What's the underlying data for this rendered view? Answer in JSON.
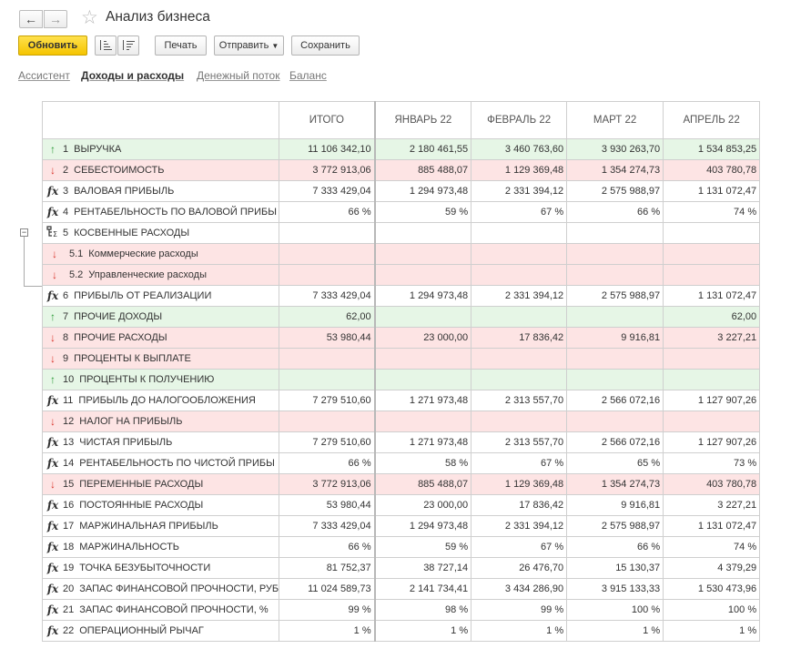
{
  "header": {
    "title": "Анализ бизнеса",
    "back_icon": "←",
    "forward_icon": "→",
    "favorite_icon": "☆"
  },
  "toolbar": {
    "refresh_label": "Обновить",
    "print_label": "Печать",
    "send_label": "Отправить",
    "save_label": "Сохранить",
    "dropdown_caret": "▼"
  },
  "tabs": [
    {
      "label": "Ассистент",
      "active": false
    },
    {
      "label": "Доходы и расходы",
      "active": true
    },
    {
      "label": "Денежный поток",
      "active": false
    },
    {
      "label": "Баланс",
      "active": false
    }
  ],
  "table": {
    "columns": [
      "ИТОГО",
      "ЯНВАРЬ 22",
      "ФЕВРАЛЬ 22",
      "МАРТ 22",
      "АПРЕЛЬ 22"
    ],
    "rows": [
      {
        "num": "1",
        "label": "ВЫРУЧКА",
        "icon": "arrow-up",
        "tint": "green",
        "values": [
          "11 106 342,10",
          "2 180 461,55",
          "3 460 763,60",
          "3 930 263,70",
          "1 534 853,25"
        ]
      },
      {
        "num": "2",
        "label": "СЕБЕСТОИМОСТЬ",
        "icon": "arrow-down",
        "tint": "red",
        "values": [
          "3 772 913,06",
          "885 488,07",
          "1 129 369,48",
          "1 354 274,73",
          "403 780,78"
        ]
      },
      {
        "num": "3",
        "label": "ВАЛОВАЯ ПРИБЫЛЬ",
        "icon": "fx",
        "tint": "none",
        "values": [
          "7 333 429,04",
          "1 294 973,48",
          "2 331 394,12",
          "2 575 988,97",
          "1 131 072,47"
        ]
      },
      {
        "num": "4",
        "label": "РЕНТАБЕЛЬНОСТЬ ПО ВАЛОВОЙ ПРИБЫ",
        "icon": "fx",
        "tint": "none",
        "values": [
          "66 %",
          "59 %",
          "67 %",
          "66 %",
          "74 %"
        ]
      },
      {
        "num": "5",
        "label": "КОСВЕННЫЕ РАСХОДЫ",
        "icon": "group",
        "tint": "none",
        "values": [
          "",
          "",
          "",
          "",
          ""
        ]
      },
      {
        "num": "5.1",
        "label": "Коммерческие расходы",
        "icon": "arrow-down",
        "tint": "red",
        "sub": true,
        "values": [
          "",
          "",
          "",
          "",
          ""
        ]
      },
      {
        "num": "5.2",
        "label": "Управленческие расходы",
        "icon": "arrow-down",
        "tint": "red",
        "sub": true,
        "values": [
          "",
          "",
          "",
          "",
          ""
        ]
      },
      {
        "num": "6",
        "label": "ПРИБЫЛЬ ОТ РЕАЛИЗАЦИИ",
        "icon": "fx",
        "tint": "none",
        "values": [
          "7 333 429,04",
          "1 294 973,48",
          "2 331 394,12",
          "2 575 988,97",
          "1 131 072,47"
        ]
      },
      {
        "num": "7",
        "label": "ПРОЧИЕ ДОХОДЫ",
        "icon": "arrow-up",
        "tint": "green",
        "values": [
          "62,00",
          "",
          "",
          "",
          "62,00"
        ]
      },
      {
        "num": "8",
        "label": "ПРОЧИЕ РАСХОДЫ",
        "icon": "arrow-down",
        "tint": "red",
        "values": [
          "53 980,44",
          "23 000,00",
          "17 836,42",
          "9 916,81",
          "3 227,21"
        ]
      },
      {
        "num": "9",
        "label": "ПРОЦЕНТЫ К ВЫПЛАТЕ",
        "icon": "arrow-down",
        "tint": "red",
        "values": [
          "",
          "",
          "",
          "",
          ""
        ]
      },
      {
        "num": "10",
        "label": "ПРОЦЕНТЫ К ПОЛУЧЕНИЮ",
        "icon": "arrow-up",
        "tint": "green",
        "values": [
          "",
          "",
          "",
          "",
          ""
        ]
      },
      {
        "num": "11",
        "label": "ПРИБЫЛЬ ДО НАЛОГООБЛОЖЕНИЯ",
        "icon": "fx",
        "tint": "none",
        "values": [
          "7 279 510,60",
          "1 271 973,48",
          "2 313 557,70",
          "2 566 072,16",
          "1 127 907,26"
        ]
      },
      {
        "num": "12",
        "label": "НАЛОГ НА ПРИБЫЛЬ",
        "icon": "arrow-down",
        "tint": "red",
        "values": [
          "",
          "",
          "",
          "",
          ""
        ]
      },
      {
        "num": "13",
        "label": "ЧИСТАЯ ПРИБЫЛЬ",
        "icon": "fx",
        "tint": "none",
        "values": [
          "7 279 510,60",
          "1 271 973,48",
          "2 313 557,70",
          "2 566 072,16",
          "1 127 907,26"
        ]
      },
      {
        "num": "14",
        "label": "РЕНТАБЕЛЬНОСТЬ ПО ЧИСТОЙ ПРИБЫ",
        "icon": "fx",
        "tint": "none",
        "values": [
          "66 %",
          "58 %",
          "67 %",
          "65 %",
          "73 %"
        ]
      },
      {
        "num": "15",
        "label": "ПЕРЕМЕННЫЕ РАСХОДЫ",
        "icon": "arrow-down",
        "tint": "red",
        "values": [
          "3 772 913,06",
          "885 488,07",
          "1 129 369,48",
          "1 354 274,73",
          "403 780,78"
        ]
      },
      {
        "num": "16",
        "label": "ПОСТОЯННЫЕ РАСХОДЫ",
        "icon": "fx",
        "tint": "none",
        "values": [
          "53 980,44",
          "23 000,00",
          "17 836,42",
          "9 916,81",
          "3 227,21"
        ]
      },
      {
        "num": "17",
        "label": "МАРЖИНАЛЬНАЯ ПРИБЫЛЬ",
        "icon": "fx",
        "tint": "none",
        "values": [
          "7 333 429,04",
          "1 294 973,48",
          "2 331 394,12",
          "2 575 988,97",
          "1 131 072,47"
        ]
      },
      {
        "num": "18",
        "label": "МАРЖИНАЛЬНОСТЬ",
        "icon": "fx",
        "tint": "none",
        "values": [
          "66 %",
          "59 %",
          "67 %",
          "66 %",
          "74 %"
        ]
      },
      {
        "num": "19",
        "label": "ТОЧКА БЕЗУБЫТОЧНОСТИ",
        "icon": "fx",
        "tint": "none",
        "values": [
          "81 752,37",
          "38 727,14",
          "26 476,70",
          "15 130,37",
          "4 379,29"
        ]
      },
      {
        "num": "20",
        "label": "ЗАПАС ФИНАНСОВОЙ ПРОЧНОСТИ, РУБ",
        "icon": "fx",
        "tint": "none",
        "values": [
          "11 024 589,73",
          "2 141 734,41",
          "3 434 286,90",
          "3 915 133,33",
          "1 530 473,96"
        ]
      },
      {
        "num": "21",
        "label": "ЗАПАС ФИНАНСОВОЙ ПРОЧНОСТИ, %",
        "icon": "fx",
        "tint": "none",
        "values": [
          "99 %",
          "98 %",
          "99 %",
          "100 %",
          "100 %"
        ]
      },
      {
        "num": "22",
        "label": "ОПЕРАЦИОННЫЙ РЫЧАГ",
        "icon": "fx",
        "tint": "none",
        "values": [
          "1 %",
          "1 %",
          "1 %",
          "1 %",
          "1 %"
        ]
      }
    ]
  }
}
